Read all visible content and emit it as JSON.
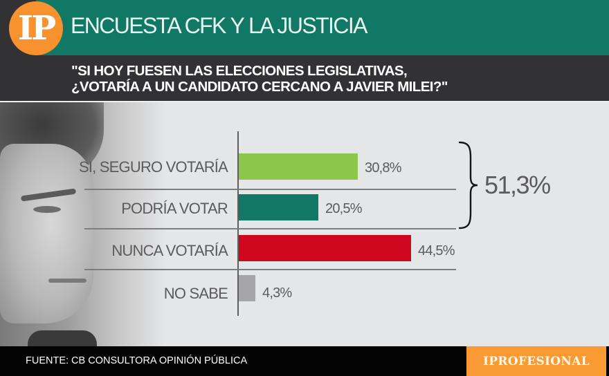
{
  "header": {
    "logo_text": "IP",
    "title": "ENCUESTA CFK Y LA JUSTICIA",
    "question_line1": "\"SI HOY FUESEN LAS ELECCIONES LEGISLATIVAS,",
    "question_line2": "¿VOTARÍA A UN CANDIDATO CERCANO A JAVIER MILEI?\""
  },
  "colors": {
    "title_band": "#127866",
    "dark_band": "#323133",
    "logo_orange": "#f7922e",
    "background": "#e5e6e8",
    "footer": "#030303",
    "brand_orange": "#f99a34"
  },
  "chart_data": {
    "type": "bar",
    "orientation": "horizontal",
    "title": "\"SI HOY FUESEN LAS ELECCIONES LEGISLATIVAS, ¿VOTARÍA A UN CANDIDATO CERCANO A JAVIER MILEI?\"",
    "categories": [
      "SI, SEGURO VOTARÍA",
      "PODRÍA VOTAR",
      "NUNCA VOTARÍA",
      "NO SABE"
    ],
    "values": [
      30.8,
      20.5,
      44.5,
      4.3
    ],
    "value_labels": [
      "30,8%",
      "20,5%",
      "44,5%",
      "4,3%"
    ],
    "bar_colors": [
      "#8bc74b",
      "#127866",
      "#d0081f",
      "#a6a6a8"
    ],
    "annotations": [
      {
        "type": "brace",
        "groups": [
          "SI, SEGURO VOTARÍA",
          "PODRÍA VOTAR"
        ],
        "label": "51,3%",
        "value": 51.3
      }
    ],
    "xlabel": "",
    "ylabel": "",
    "unit": "%",
    "grid": true,
    "legend": null
  },
  "footer": {
    "source": "FUENTE: CB CONSULTORA OPINIÓN PÚBLICA",
    "brand": "IPROFESIONAL"
  }
}
